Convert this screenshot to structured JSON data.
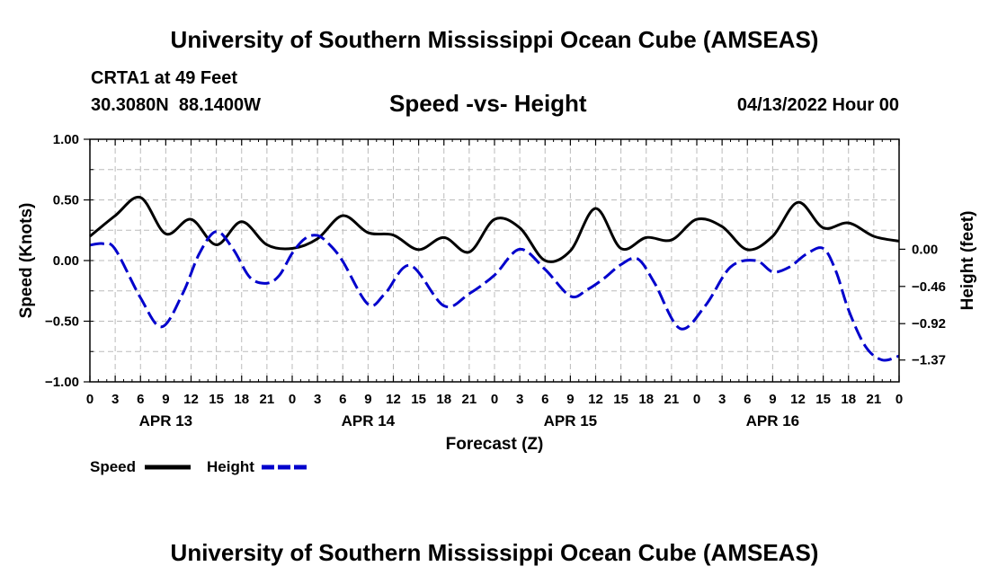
{
  "header": {
    "title": "University of Southern Mississippi Ocean Cube (AMSEAS)",
    "station": "CRTA1 at 49 Feet",
    "coords": "30.3080N  88.1400W",
    "subtitle": "Speed -vs- Height",
    "datetime": "04/13/2022 Hour 00"
  },
  "footer": {
    "title": "University of Southern Mississippi Ocean Cube (AMSEAS)"
  },
  "colors": {
    "speed": "#000000",
    "height": "#0000cc",
    "grid": "#bbbbbb"
  },
  "chart_data": {
    "type": "line",
    "xlabel": "Forecast (Z)",
    "ylabel": "Speed (Knots)",
    "y2label": "Height (feet)",
    "xlim": [
      0,
      96
    ],
    "ylim": [
      -1.0,
      1.0
    ],
    "y2lim": [
      -1.64,
      1.36
    ],
    "x_tick_labels": [
      "0",
      "3",
      "6",
      "9",
      "12",
      "15",
      "18",
      "21",
      "0",
      "3",
      "6",
      "9",
      "12",
      "15",
      "18",
      "21",
      "0",
      "3",
      "6",
      "9",
      "12",
      "15",
      "18",
      "21",
      "0",
      "3",
      "6",
      "9",
      "12",
      "15",
      "18",
      "21",
      "0"
    ],
    "y_ticks": [
      1.0,
      0.5,
      0.0,
      -0.5,
      -1.0
    ],
    "y_tick_labels": [
      "1.00",
      "0.50",
      "0.00",
      "−0.50",
      "−1.00"
    ],
    "y2_ticks": [
      0.0,
      -0.46,
      -0.92,
      -1.37
    ],
    "y2_tick_labels": [
      "0.00",
      "−0.46",
      "−0.92",
      "−1.37"
    ],
    "date_labels": [
      {
        "x": 9,
        "label": "APR 13"
      },
      {
        "x": 33,
        "label": "APR 14"
      },
      {
        "x": 57,
        "label": "APR 15"
      },
      {
        "x": 81,
        "label": "APR 16"
      }
    ],
    "legend": [
      {
        "name": "Speed",
        "style": "solid"
      },
      {
        "name": "Height",
        "style": "dashed"
      }
    ],
    "series": [
      {
        "name": "Speed",
        "axis": "left",
        "style": "solid",
        "x": [
          0,
          3,
          6,
          9,
          12,
          15,
          18,
          21,
          24,
          27,
          30,
          33,
          36,
          39,
          42,
          45,
          48,
          51,
          54,
          57,
          60,
          63,
          66,
          69,
          72,
          75,
          78,
          81,
          84,
          87,
          90,
          93,
          96
        ],
        "y": [
          0.2,
          0.37,
          0.52,
          0.22,
          0.34,
          0.13,
          0.32,
          0.13,
          0.1,
          0.18,
          0.37,
          0.23,
          0.21,
          0.09,
          0.19,
          0.07,
          0.34,
          0.27,
          0.0,
          0.08,
          0.43,
          0.1,
          0.19,
          0.17,
          0.34,
          0.28,
          0.09,
          0.2,
          0.48,
          0.27,
          0.31,
          0.2,
          0.16
        ]
      },
      {
        "name": "Height",
        "axis": "right",
        "style": "dashed",
        "x": [
          0,
          1.5,
          3,
          6,
          8.5,
          11,
          13,
          15,
          17,
          19,
          21,
          22.5,
          24,
          25.5,
          27,
          28.5,
          30,
          33,
          35,
          38,
          42,
          45,
          48,
          51,
          54,
          57,
          59,
          61,
          63,
          65,
          67,
          70,
          73,
          76,
          79,
          81,
          83,
          85,
          87,
          88.5,
          90,
          92,
          94,
          96
        ],
        "y": [
          0.05,
          0.07,
          0.0,
          -0.6,
          -0.96,
          -0.55,
          -0.05,
          0.22,
          0.0,
          -0.35,
          -0.42,
          -0.32,
          -0.05,
          0.13,
          0.17,
          0.05,
          -0.15,
          -0.68,
          -0.55,
          -0.2,
          -0.7,
          -0.55,
          -0.32,
          0.0,
          -0.25,
          -0.58,
          -0.5,
          -0.36,
          -0.19,
          -0.12,
          -0.42,
          -0.98,
          -0.7,
          -0.22,
          -0.14,
          -0.28,
          -0.22,
          -0.06,
          0.01,
          -0.27,
          -0.75,
          -1.2,
          -1.37,
          -1.32
        ]
      }
    ]
  }
}
